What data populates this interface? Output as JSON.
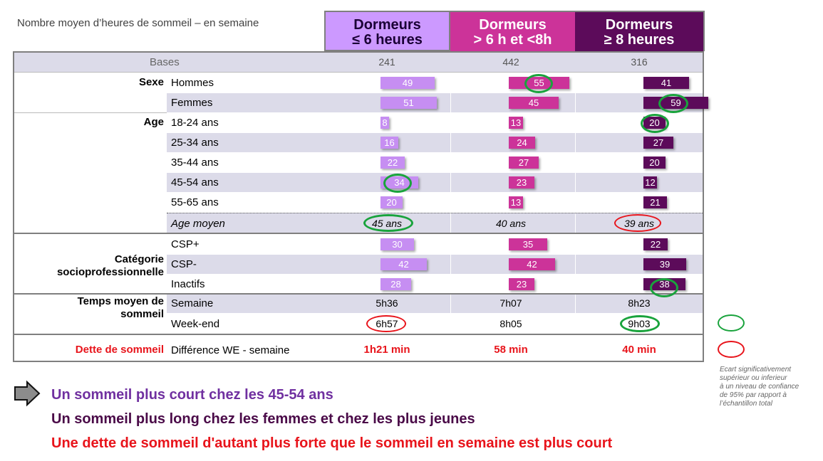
{
  "title": "Nombre moyen d’heures de sommeil – en semaine",
  "columns": [
    {
      "line1": "Dormeurs",
      "line2": "≤ 6 heures"
    },
    {
      "line1": "Dormeurs",
      "line2": "> 6 h et <8h"
    },
    {
      "line1": "Dormeurs",
      "line2": "≥ 8 heures"
    }
  ],
  "bases": {
    "label": "Bases",
    "values": [
      "241",
      "442",
      "316"
    ]
  },
  "groups": {
    "sexe": "Sexe",
    "age": "Age",
    "csp_line1": "Catégorie",
    "csp_line2": "socioprofessionnelle",
    "temps_line1": "Temps moyen de",
    "temps_line2": "sommeil",
    "dette": "Dette de sommeil"
  },
  "rows": [
    {
      "label": "Hommes",
      "values": [
        49,
        55,
        41
      ]
    },
    {
      "label": "Femmes",
      "values": [
        51,
        45,
        59
      ]
    },
    {
      "label": "18-24 ans",
      "values": [
        8,
        13,
        20
      ]
    },
    {
      "label": "25-34 ans",
      "values": [
        16,
        24,
        27
      ]
    },
    {
      "label": "35-44 ans",
      "values": [
        22,
        27,
        20
      ]
    },
    {
      "label": "45-54 ans",
      "values": [
        34,
        23,
        12
      ]
    },
    {
      "label": "55-65 ans",
      "values": [
        20,
        13,
        21
      ]
    },
    {
      "label": "CSP+",
      "values": [
        30,
        35,
        22
      ]
    },
    {
      "label": "CSP-",
      "values": [
        42,
        42,
        39
      ]
    },
    {
      "label": "Inactifs",
      "values": [
        28,
        23,
        38
      ]
    }
  ],
  "age_moyen": {
    "label": "Age moyen",
    "values": [
      "45 ans",
      "40 ans",
      "39 ans"
    ]
  },
  "semaine": {
    "label": "Semaine",
    "values": [
      "5h36",
      "7h07",
      "8h23"
    ]
  },
  "weekend": {
    "label": "Week-end",
    "values": [
      "6h57",
      "8h05",
      "9h03"
    ]
  },
  "difference": {
    "label": "Différence  WE - semaine",
    "values": [
      "1h21 min",
      "58 min",
      "40 min"
    ]
  },
  "colors": {
    "col1": "#cc99ff",
    "col2": "#cc3399",
    "col3": "#5c0b5a",
    "green_circle": "#19a33c",
    "red_circle": "#e8141b",
    "shade": "#dcdbe9"
  },
  "legend": {
    "line1": "Ecart significativement",
    "line2": "supérieur ou inferieur",
    "line3": "à un niveau de confiance",
    "line4": "de 95% par rapport à",
    "line5": "l’échantillon total"
  },
  "conclusions": {
    "line1": "Un sommeil plus court chez les 45-54 ans",
    "line2": "Un sommeil plus long chez les femmes et chez les plus jeunes",
    "line3": "Une dette de sommeil d'autant plus forte que le sommeil en semaine est plus court"
  },
  "icons": {
    "arrow": "arrow-right-icon"
  }
}
